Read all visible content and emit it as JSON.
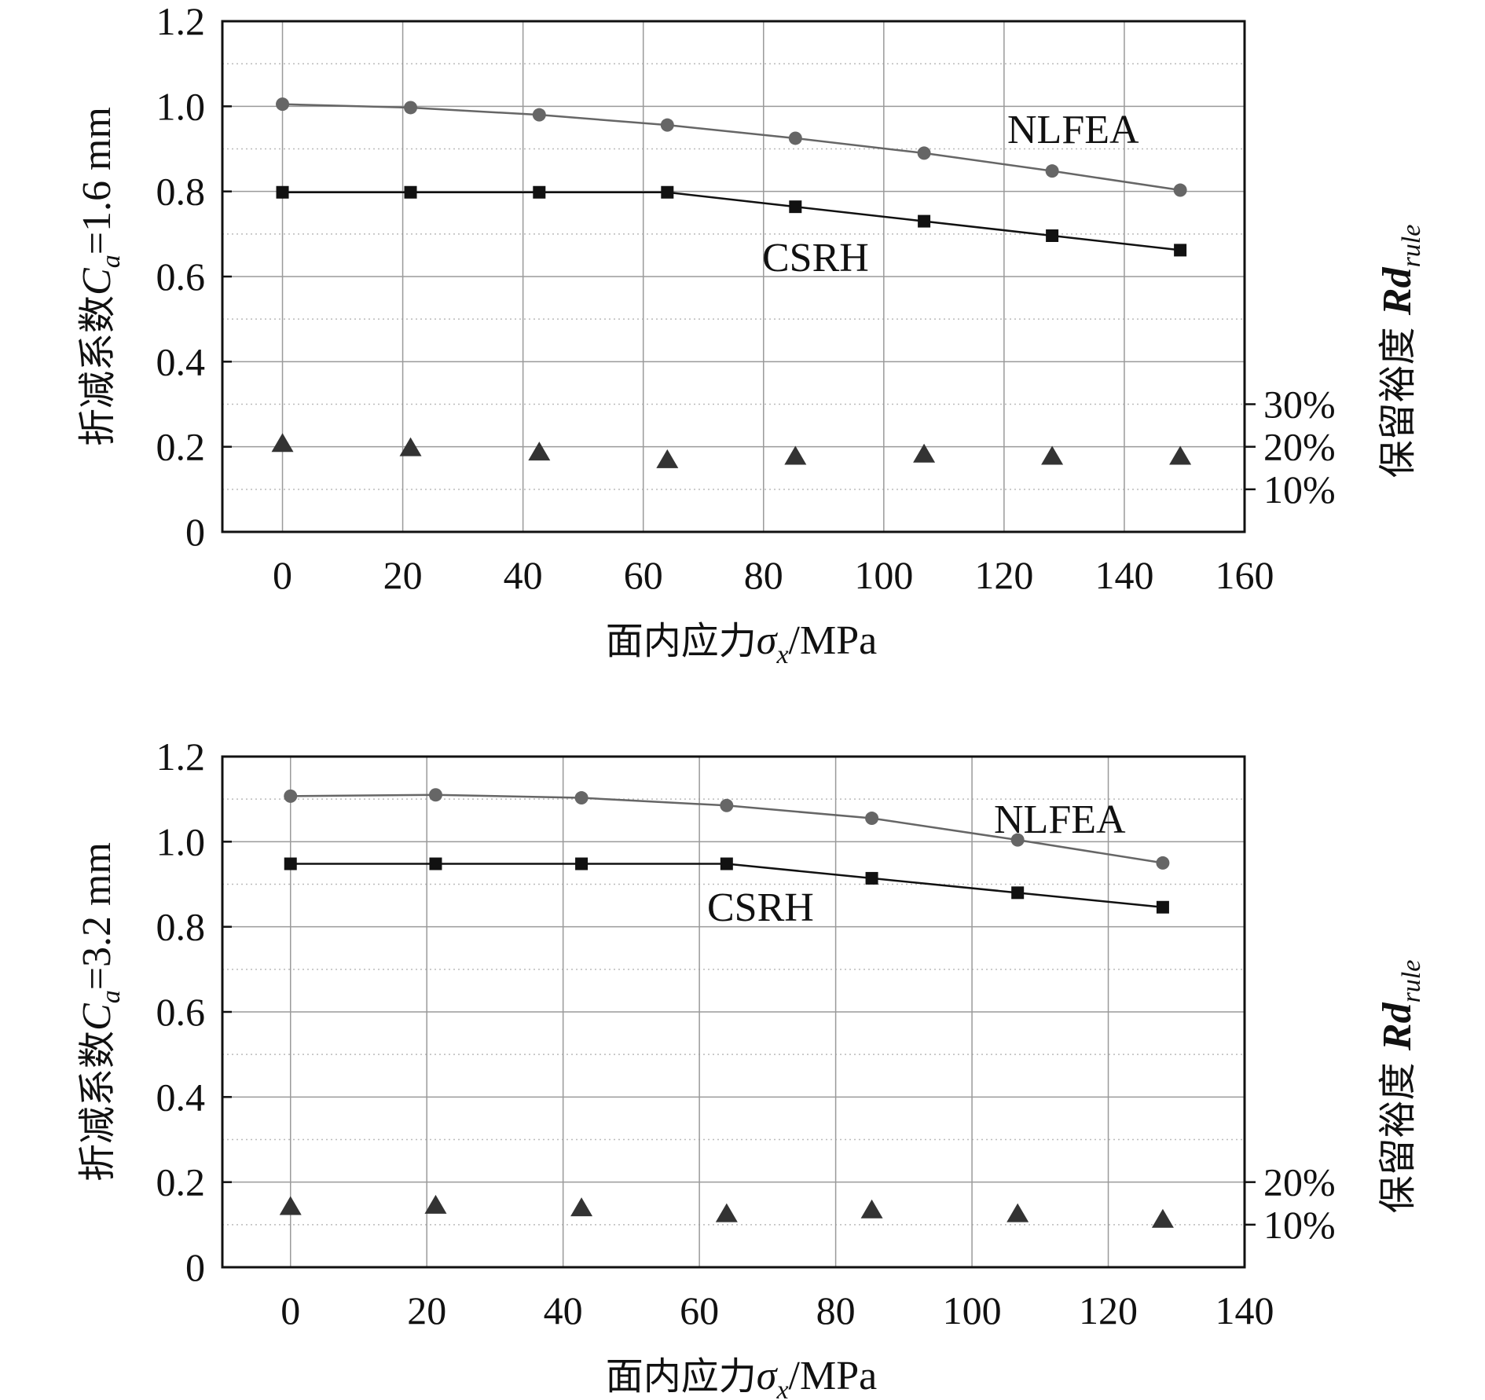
{
  "chart_data": [
    {
      "type": "line",
      "panel": "top",
      "ylabel": "折减系数",
      "ylabel_symbol": "C",
      "ylabel_sub": "a",
      "ylabel_tail": "=1.6 mm",
      "xlabel": "面内应力",
      "xlabel_symbol": "σ",
      "xlabel_sub": "x",
      "xlabel_tail": "/MPa",
      "y2label": "保留裕度 ",
      "y2label_symbol": "Rd",
      "y2label_sub": "rule",
      "xlim": [
        -10,
        160
      ],
      "ylim": [
        0,
        1.2
      ],
      "xticks": [
        0,
        20,
        40,
        60,
        80,
        100,
        120,
        140,
        160
      ],
      "xtick_labels": [
        "0",
        "20",
        "40",
        "60",
        "80",
        "100",
        "120",
        "140",
        "160"
      ],
      "yticks": [
        0,
        0.2,
        0.4,
        0.6,
        0.8,
        1.0,
        1.2
      ],
      "ytick_labels": [
        "0",
        "0.2",
        "0.4",
        "0.6",
        "0.8",
        "1.0",
        "1.2"
      ],
      "y2ticks": [
        0.1,
        0.2,
        0.3
      ],
      "y2tick_labels": [
        "10%",
        "20%",
        "30%"
      ],
      "grid": true,
      "series": [
        {
          "name": "NLFEA",
          "marker": "circle",
          "color": "#666666",
          "x": [
            0,
            21.3,
            42.7,
            64,
            85.3,
            106.7,
            128,
            149.3
          ],
          "values": [
            1.005,
            0.997,
            0.98,
            0.956,
            0.925,
            0.89,
            0.848,
            0.803
          ]
        },
        {
          "name": "CSRH",
          "marker": "square",
          "color": "#111111",
          "x": [
            0,
            21.3,
            42.7,
            64,
            85.3,
            106.7,
            128,
            149.3
          ],
          "values": [
            0.798,
            0.798,
            0.798,
            0.798,
            0.764,
            0.73,
            0.696,
            0.662
          ]
        },
        {
          "name": "Rd_rule",
          "marker": "triangle",
          "color": "#333333",
          "x": [
            0,
            21.3,
            42.7,
            64,
            85.3,
            106.7,
            128,
            149.3
          ],
          "values": [
            0.21,
            0.2,
            0.19,
            0.172,
            0.18,
            0.185,
            0.18,
            0.18
          ]
        }
      ],
      "annotations": [
        "NLFEA",
        "CSRH"
      ]
    },
    {
      "type": "line",
      "panel": "bottom",
      "ylabel": "折减系数",
      "ylabel_symbol": "C",
      "ylabel_sub": "a",
      "ylabel_tail": "=3.2 mm",
      "xlabel": "面内应力",
      "xlabel_symbol": "σ",
      "xlabel_sub": "x",
      "xlabel_tail": "/MPa",
      "y2label": "保留裕度 ",
      "y2label_symbol": "Rd",
      "y2label_sub": "rule",
      "xlim": [
        -10,
        140
      ],
      "ylim": [
        0,
        1.2
      ],
      "xticks": [
        0,
        20,
        40,
        60,
        80,
        100,
        120,
        140
      ],
      "xtick_labels": [
        "0",
        "20",
        "40",
        "60",
        "80",
        "100",
        "120",
        "140"
      ],
      "yticks": [
        0,
        0.2,
        0.4,
        0.6,
        0.8,
        1.0,
        1.2
      ],
      "ytick_labels": [
        "0",
        "0.2",
        "0.4",
        "0.6",
        "0.8",
        "1.0",
        "1.2"
      ],
      "y2ticks": [
        0.1,
        0.2
      ],
      "y2tick_labels": [
        "10%",
        "20%"
      ],
      "grid": true,
      "series": [
        {
          "name": "NLFEA",
          "marker": "circle",
          "color": "#666666",
          "x": [
            0,
            21.3,
            42.7,
            64,
            85.3,
            106.7,
            128
          ],
          "values": [
            1.107,
            1.11,
            1.103,
            1.085,
            1.055,
            1.004,
            0.95
          ]
        },
        {
          "name": "CSRH",
          "marker": "square",
          "color": "#111111",
          "x": [
            0,
            21.3,
            42.7,
            64,
            85.3,
            106.7,
            128
          ],
          "values": [
            0.948,
            0.948,
            0.948,
            0.948,
            0.914,
            0.88,
            0.846
          ]
        },
        {
          "name": "Rd_rule",
          "marker": "triangle",
          "color": "#333333",
          "x": [
            0,
            21.3,
            42.7,
            64,
            85.3,
            106.7,
            128
          ],
          "values": [
            0.145,
            0.148,
            0.142,
            0.128,
            0.137,
            0.128,
            0.115
          ]
        }
      ],
      "annotations": [
        "NLFEA",
        "CSRH"
      ]
    }
  ]
}
